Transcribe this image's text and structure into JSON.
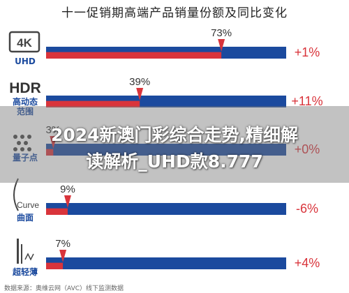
{
  "page": {
    "title": "十一促销期高端产品销量份额及同比变化",
    "source": "数据来源：奥维云网（AVC）线下监测数据"
  },
  "overlay": {
    "line1": "2024新澳门彩综合走势,精细解",
    "line2": "读解析_UHD款8.777"
  },
  "colors": {
    "share": "#d9343b",
    "rest": "#1b4a9e",
    "positive": "#d9343b",
    "negative": "#d9343b",
    "neutral": "#888888",
    "icon": "#444444"
  },
  "chart_data": {
    "type": "bar",
    "title": "十一促销期高端产品销量份额及同比变化",
    "xlim": [
      0,
      100
    ],
    "categories": [
      {
        "icon_text": "4K",
        "label": "UHD",
        "icon": "4k-box-icon"
      },
      {
        "icon_text": "HDR",
        "label": "高动态范围",
        "icon": "hdr-text-icon"
      },
      {
        "icon_text": "",
        "label": "量子点",
        "icon": "quantum-dot-icon"
      },
      {
        "icon_text": "Curve",
        "label": "曲面",
        "icon": "curve-icon"
      },
      {
        "icon_text": "",
        "label": "超轻薄",
        "icon": "thin-icon"
      }
    ],
    "share_percent": [
      73,
      39,
      3,
      9,
      7
    ],
    "share_labels": [
      "73%",
      "39%",
      "3%",
      "9%",
      "7%"
    ],
    "yoy_change": [
      "+1%",
      "+11%",
      "+0%",
      "-6%",
      "+4%"
    ]
  }
}
